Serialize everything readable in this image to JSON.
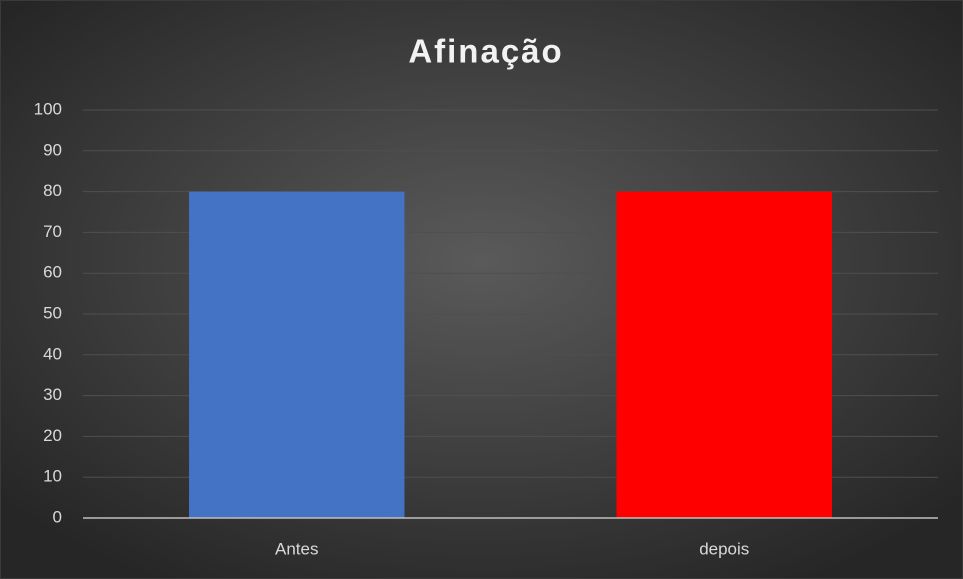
{
  "chart_data": {
    "type": "bar",
    "title": "Afinação",
    "categories": [
      "Antes",
      "depois"
    ],
    "values": [
      80,
      80
    ],
    "colors": [
      "#4472c4",
      "#ff0000"
    ],
    "ylim": [
      0,
      100
    ],
    "yticks": [
      0,
      10,
      20,
      30,
      40,
      50,
      60,
      70,
      80,
      90,
      100
    ],
    "grid": true
  }
}
